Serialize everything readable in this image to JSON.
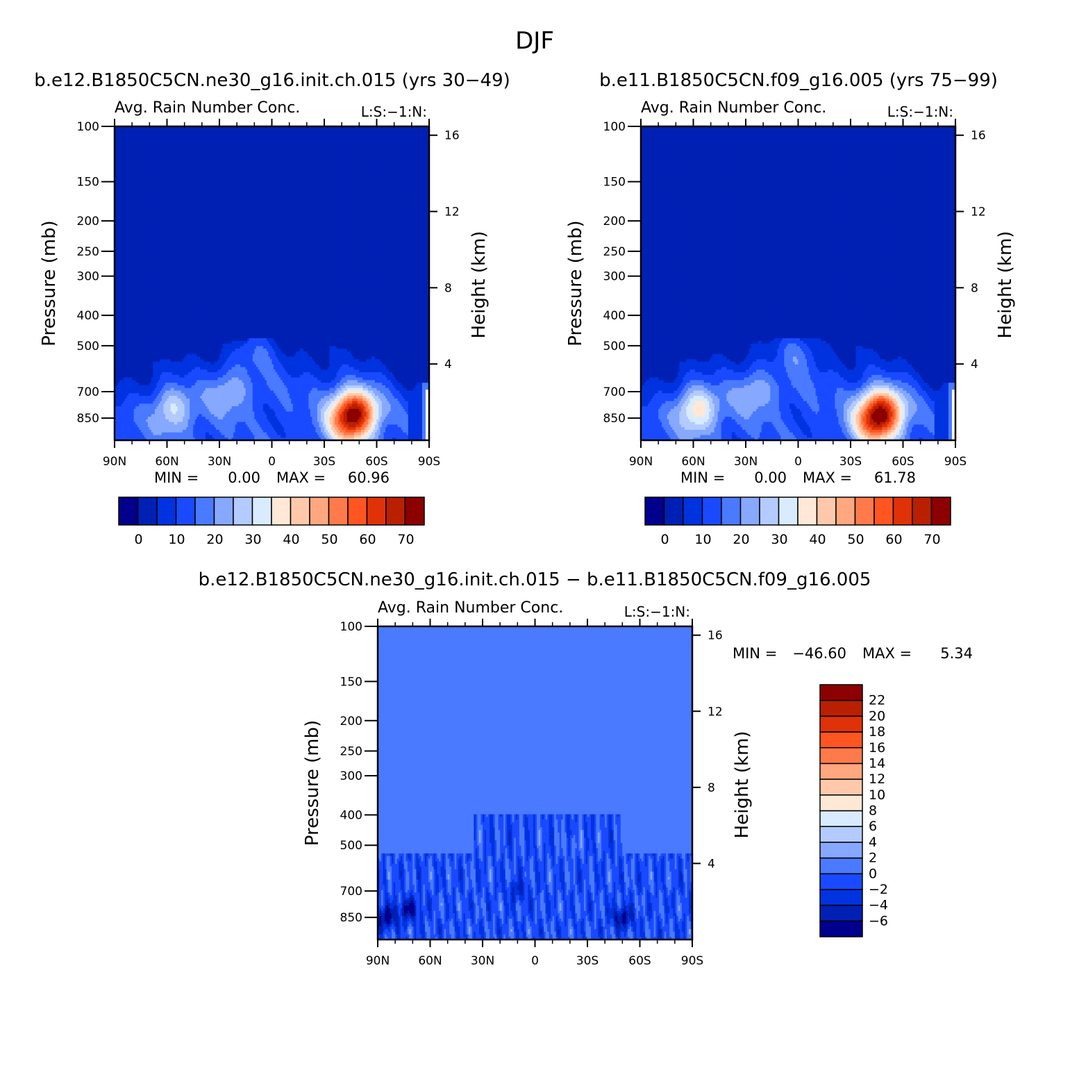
{
  "figure": {
    "season": "DJF"
  },
  "chart_data": [
    {
      "type": "heatmap",
      "case_title": "b.e12.B1850C5CN.ne30_g16.init.ch.015 (yrs 30-49)",
      "title": "Avg. Rain Number Conc.",
      "units_label": "L:S:-1:N:",
      "xlabel": "",
      "ylabel": "Pressure (mb)",
      "ylabel_right": "Height (km)",
      "x_ticks": [
        "90N",
        "60N",
        "30N",
        "0",
        "30S",
        "60S",
        "90S"
      ],
      "x_tick_values": [
        90,
        60,
        30,
        0,
        -30,
        -60,
        -90
      ],
      "xlim": [
        90,
        -90
      ],
      "y_ticks": [
        "100",
        "150",
        "200",
        "250",
        "300",
        "400",
        "500",
        "700",
        "850"
      ],
      "y_tick_values": [
        100,
        150,
        200,
        250,
        300,
        400,
        500,
        700,
        850
      ],
      "ylim": [
        100,
        1000
      ],
      "yscale": "log",
      "height_ticks": [
        "4",
        "8",
        "12",
        "16"
      ],
      "height_tick_values": [
        4,
        8,
        12,
        16
      ],
      "min_label": "MIN =",
      "min_value": "0.00",
      "max_label": "MAX =",
      "max_value": "60.96",
      "colorbar": {
        "orientation": "horizontal",
        "levels": [
          -5,
          0,
          5,
          10,
          15,
          20,
          25,
          30,
          35,
          40,
          45,
          50,
          55,
          60,
          65,
          70,
          75
        ],
        "tick_labels": [
          "0",
          "10",
          "20",
          "30",
          "40",
          "50",
          "60",
          "70"
        ],
        "tick_values": [
          0,
          10,
          20,
          30,
          40,
          50,
          60,
          70
        ],
        "colors": [
          "#00008c",
          "#0020b4",
          "#0033e0",
          "#1a4aff",
          "#4a7aff",
          "#86a8ff",
          "#b3cbff",
          "#d9ecff",
          "#ffe8d6",
          "#ffc8aa",
          "#ffa77e",
          "#ff7a4a",
          "#ff5520",
          "#e03208",
          "#b82000",
          "#8c0000"
        ]
      },
      "features": [
        {
          "lat": -44,
          "p": 850,
          "value": 60.96
        },
        {
          "lat": -52,
          "p": 800,
          "value": 35
        },
        {
          "lat": 57,
          "p": 800,
          "value": 30
        },
        {
          "lat": 25,
          "p": 700,
          "value": 25
        },
        {
          "lat": 10,
          "p": 520,
          "value": 20
        }
      ]
    },
    {
      "type": "heatmap",
      "case_title": "b.e11.B1850C5CN.f09_g16.005 (yrs 75-99)",
      "title": "Avg. Rain Number Conc.",
      "units_label": "L:S:-1:N:",
      "xlabel": "",
      "ylabel": "Pressure (mb)",
      "ylabel_right": "Height (km)",
      "x_ticks": [
        "90N",
        "60N",
        "30N",
        "0",
        "30S",
        "60S",
        "90S"
      ],
      "x_tick_values": [
        90,
        60,
        30,
        0,
        -30,
        -60,
        -90
      ],
      "xlim": [
        90,
        -90
      ],
      "y_ticks": [
        "100",
        "150",
        "200",
        "250",
        "300",
        "400",
        "500",
        "700",
        "850"
      ],
      "y_tick_values": [
        100,
        150,
        200,
        250,
        300,
        400,
        500,
        700,
        850
      ],
      "ylim": [
        100,
        1000
      ],
      "yscale": "log",
      "height_ticks": [
        "4",
        "8",
        "12",
        "16"
      ],
      "height_tick_values": [
        4,
        8,
        12,
        16
      ],
      "min_label": "MIN =",
      "min_value": "0.00",
      "max_label": "MAX =",
      "max_value": "61.78",
      "colorbar": {
        "orientation": "horizontal",
        "levels": [
          -5,
          0,
          5,
          10,
          15,
          20,
          25,
          30,
          35,
          40,
          45,
          50,
          55,
          60,
          65,
          70,
          75
        ],
        "tick_labels": [
          "0",
          "10",
          "20",
          "30",
          "40",
          "50",
          "60",
          "70"
        ],
        "tick_values": [
          0,
          10,
          20,
          30,
          40,
          50,
          60,
          70
        ],
        "colors": [
          "#00008c",
          "#0020b4",
          "#0033e0",
          "#1a4aff",
          "#4a7aff",
          "#86a8ff",
          "#b3cbff",
          "#d9ecff",
          "#ffe8d6",
          "#ffc8aa",
          "#ffa77e",
          "#ff7a4a",
          "#ff5520",
          "#e03208",
          "#b82000",
          "#8c0000"
        ]
      },
      "features": [
        {
          "lat": -44,
          "p": 850,
          "value": 61.78
        },
        {
          "lat": -52,
          "p": 800,
          "value": 35
        },
        {
          "lat": 58,
          "p": 800,
          "value": 38
        },
        {
          "lat": 25,
          "p": 700,
          "value": 25
        },
        {
          "lat": 0,
          "p": 520,
          "value": 22
        }
      ]
    },
    {
      "type": "heatmap",
      "case_title": "b.e12.B1850C5CN.ne30_g16.init.ch.015 - b.e11.B1850C5CN.f09_g16.005",
      "title": "Avg. Rain Number Conc.",
      "units_label": "L:S:-1:N:",
      "xlabel": "",
      "ylabel": "Pressure (mb)",
      "ylabel_right": "Height (km)",
      "x_ticks": [
        "90N",
        "60N",
        "30N",
        "0",
        "30S",
        "60S",
        "90S"
      ],
      "x_tick_values": [
        90,
        60,
        30,
        0,
        -30,
        -60,
        -90
      ],
      "xlim": [
        90,
        -90
      ],
      "y_ticks": [
        "100",
        "150",
        "200",
        "250",
        "300",
        "400",
        "500",
        "700",
        "850"
      ],
      "y_tick_values": [
        100,
        150,
        200,
        250,
        300,
        400,
        500,
        700,
        850
      ],
      "ylim": [
        100,
        1000
      ],
      "yscale": "log",
      "height_ticks": [
        "4",
        "8",
        "12",
        "16"
      ],
      "height_tick_values": [
        4,
        8,
        12,
        16
      ],
      "min_label": "MIN =",
      "min_value": "-46.60",
      "max_label": "MAX =",
      "max_value": "5.34",
      "colorbar": {
        "orientation": "vertical",
        "levels": [
          -8,
          -6,
          -4,
          -2,
          0,
          2,
          4,
          6,
          8,
          10,
          12,
          14,
          16,
          18,
          20,
          22,
          24
        ],
        "tick_labels": [
          "-6",
          "-4",
          "-2",
          "0",
          "2",
          "4",
          "6",
          "8",
          "10",
          "12",
          "14",
          "16",
          "18",
          "20",
          "22"
        ],
        "tick_values": [
          -6,
          -4,
          -2,
          0,
          2,
          4,
          6,
          8,
          10,
          12,
          14,
          16,
          18,
          20,
          22
        ],
        "colors": [
          "#00008c",
          "#0020b4",
          "#0033e0",
          "#1a4aff",
          "#4a7aff",
          "#86a8ff",
          "#b3cbff",
          "#d9ecff",
          "#ffe8d6",
          "#ffc8aa",
          "#ffa77e",
          "#ff7a4a",
          "#ff5520",
          "#e03208",
          "#b82000",
          "#8c0000"
        ]
      },
      "features": [
        {
          "lat": 85,
          "p": 850,
          "value": -8
        },
        {
          "lat": 72,
          "p": 800,
          "value": -7
        },
        {
          "lat": -50,
          "p": 850,
          "value": -7
        },
        {
          "lat": 10,
          "p": 700,
          "value": -4
        },
        {
          "lat": -20,
          "p": 500,
          "value": 2
        }
      ]
    }
  ]
}
